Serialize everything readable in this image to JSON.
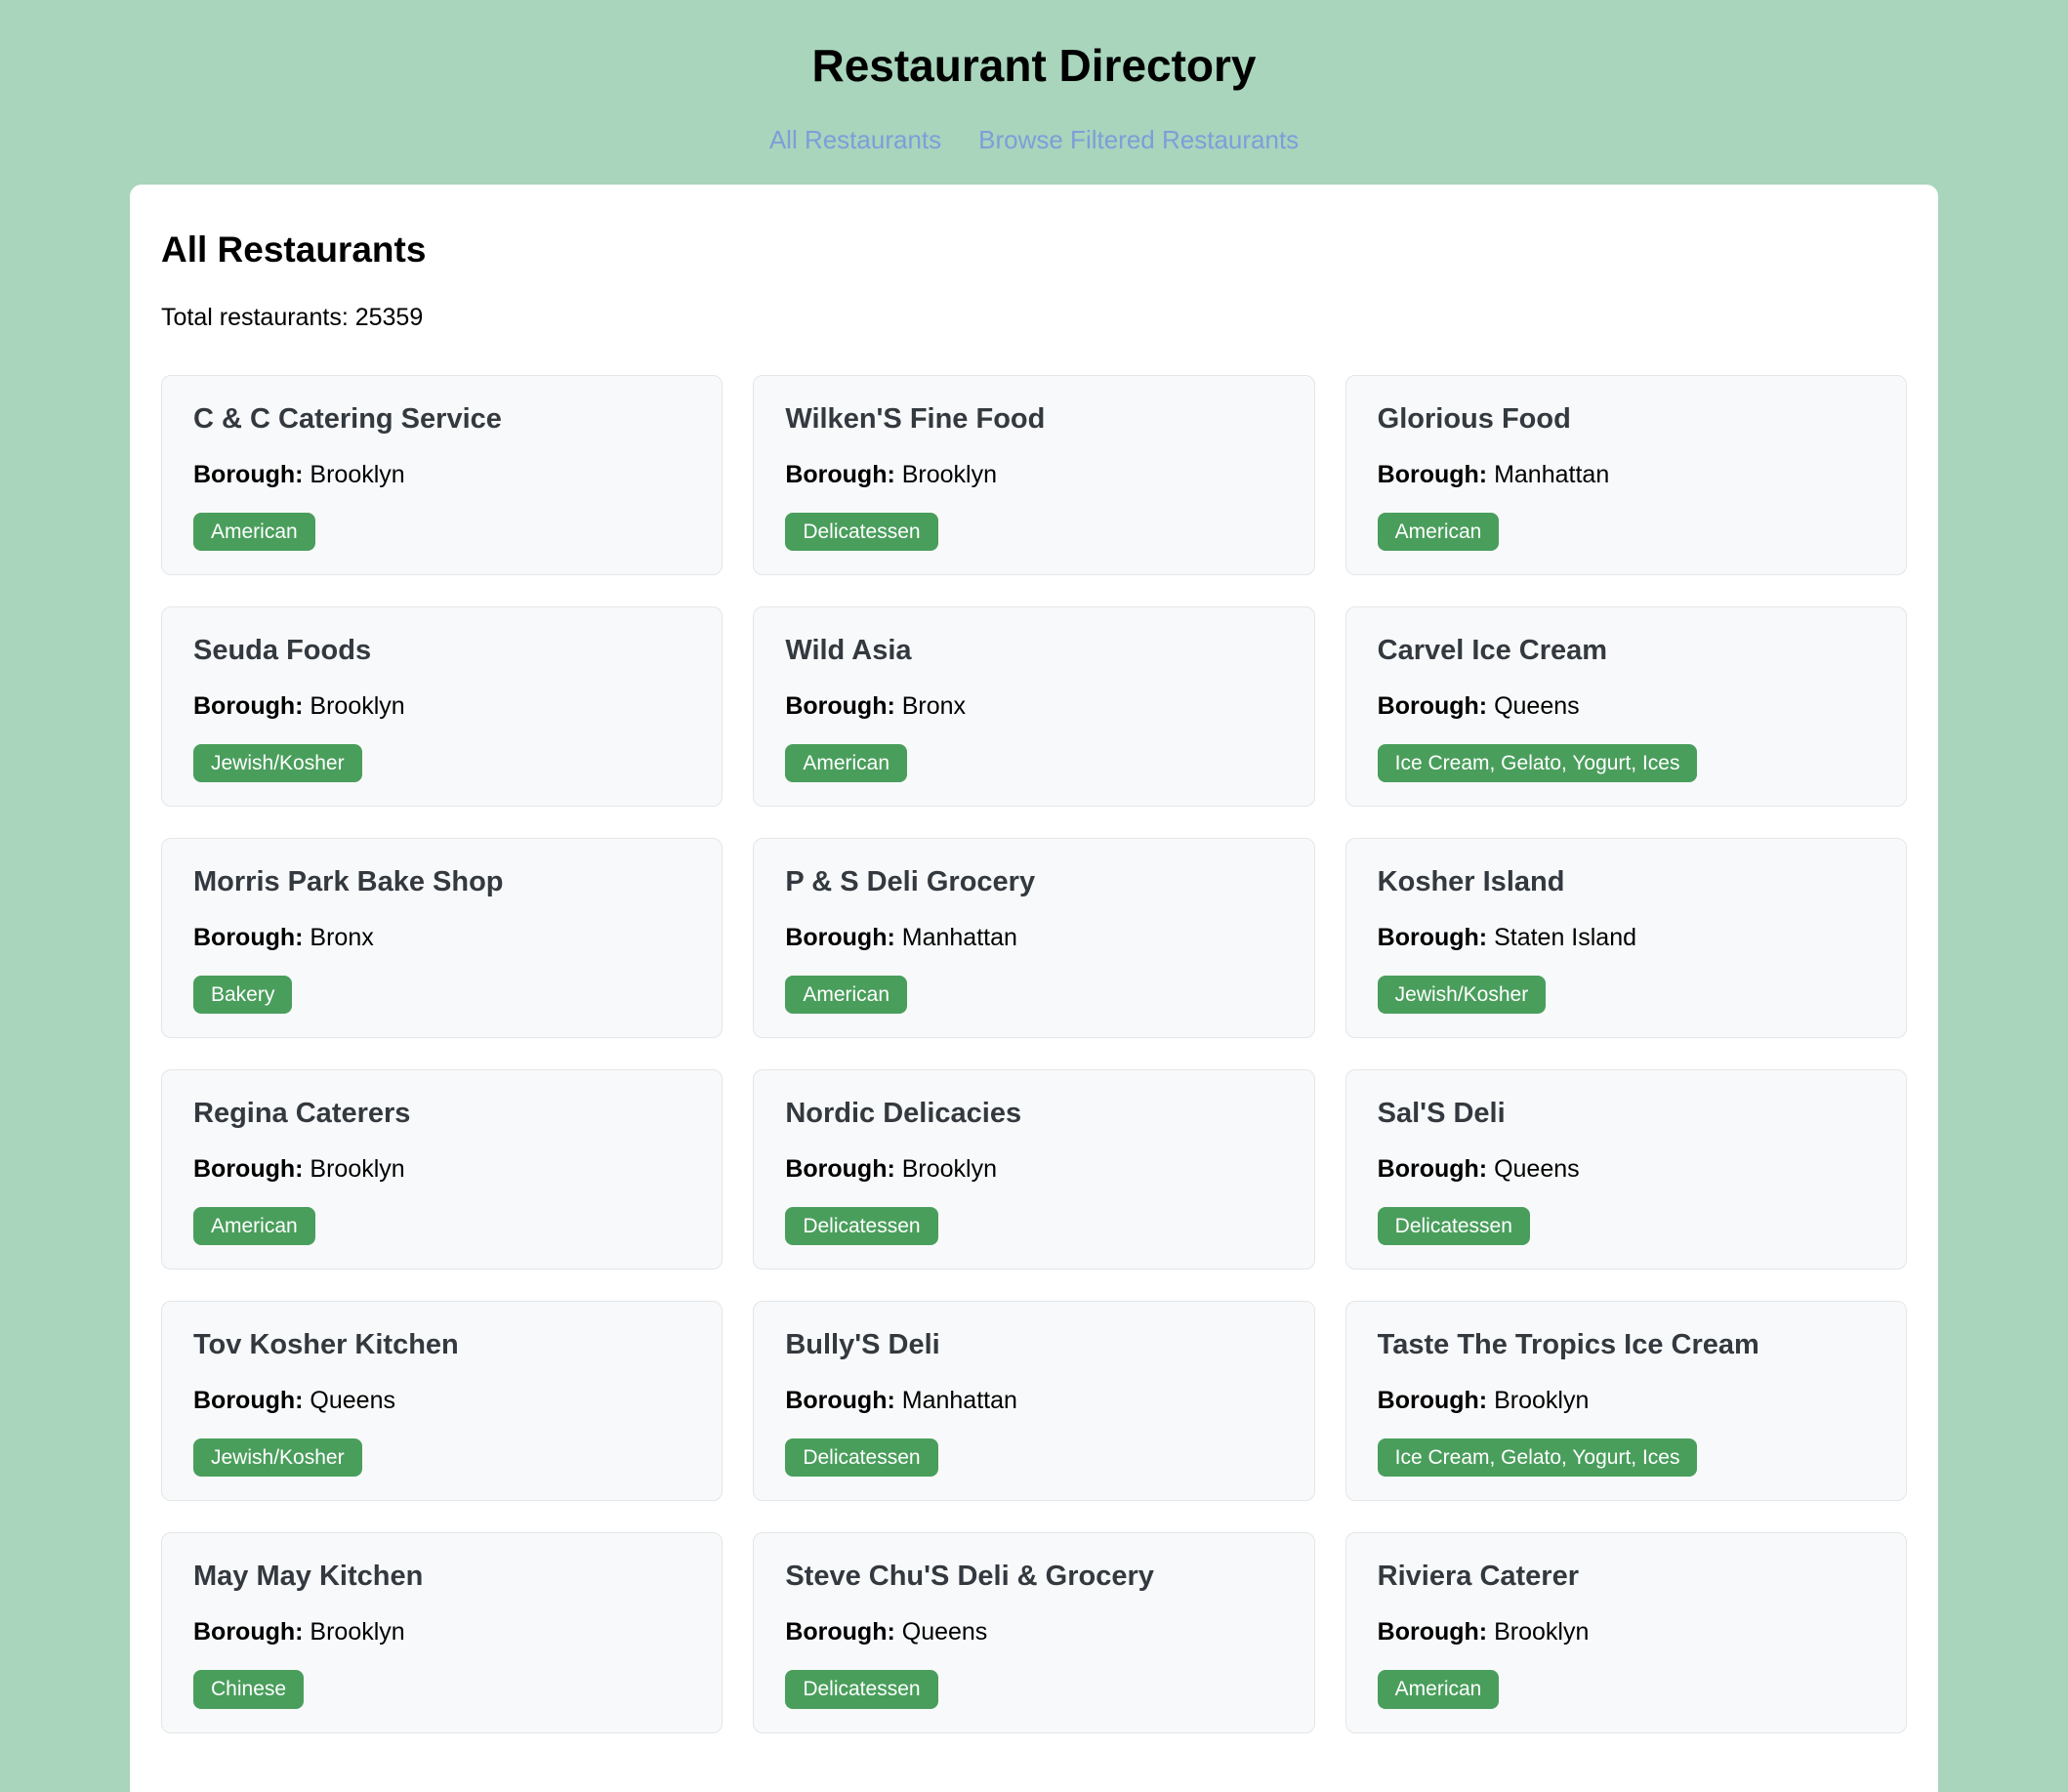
{
  "page": {
    "title": "Restaurant Directory"
  },
  "nav": {
    "links": [
      {
        "label": "All Restaurants"
      },
      {
        "label": "Browse Filtered Restaurants"
      }
    ]
  },
  "main": {
    "heading": "All Restaurants",
    "total_line": "Total restaurants: 25359"
  },
  "labels": {
    "borough": "Borough:"
  },
  "colors": {
    "background": "#a8d5bc",
    "badge_green": "#4a9e5c",
    "link_blue": "#7d9ed9",
    "card_background": "#f8f9fa"
  },
  "restaurants": [
    {
      "name": "C & C Catering Service",
      "borough": "Brooklyn",
      "cuisine": "American"
    },
    {
      "name": "Wilken'S Fine Food",
      "borough": "Brooklyn",
      "cuisine": "Delicatessen"
    },
    {
      "name": "Glorious Food",
      "borough": "Manhattan",
      "cuisine": "American"
    },
    {
      "name": "Seuda Foods",
      "borough": "Brooklyn",
      "cuisine": "Jewish/Kosher"
    },
    {
      "name": "Wild Asia",
      "borough": "Bronx",
      "cuisine": "American"
    },
    {
      "name": "Carvel Ice Cream",
      "borough": "Queens",
      "cuisine": "Ice Cream, Gelato, Yogurt, Ices"
    },
    {
      "name": "Morris Park Bake Shop",
      "borough": "Bronx",
      "cuisine": "Bakery"
    },
    {
      "name": "P & S Deli Grocery",
      "borough": "Manhattan",
      "cuisine": "American"
    },
    {
      "name": "Kosher Island",
      "borough": "Staten Island",
      "cuisine": "Jewish/Kosher"
    },
    {
      "name": "Regina Caterers",
      "borough": "Brooklyn",
      "cuisine": "American"
    },
    {
      "name": "Nordic Delicacies",
      "borough": "Brooklyn",
      "cuisine": "Delicatessen"
    },
    {
      "name": "Sal'S Deli",
      "borough": "Queens",
      "cuisine": "Delicatessen"
    },
    {
      "name": "Tov Kosher Kitchen",
      "borough": "Queens",
      "cuisine": "Jewish/Kosher"
    },
    {
      "name": "Bully'S Deli",
      "borough": "Manhattan",
      "cuisine": "Delicatessen"
    },
    {
      "name": "Taste The Tropics Ice Cream",
      "borough": "Brooklyn",
      "cuisine": "Ice Cream, Gelato, Yogurt, Ices"
    },
    {
      "name": "May May Kitchen",
      "borough": "Brooklyn",
      "cuisine": "Chinese"
    },
    {
      "name": "Steve Chu'S Deli & Grocery",
      "borough": "Queens",
      "cuisine": "Delicatessen"
    },
    {
      "name": "Riviera Caterer",
      "borough": "Brooklyn",
      "cuisine": "American"
    }
  ]
}
